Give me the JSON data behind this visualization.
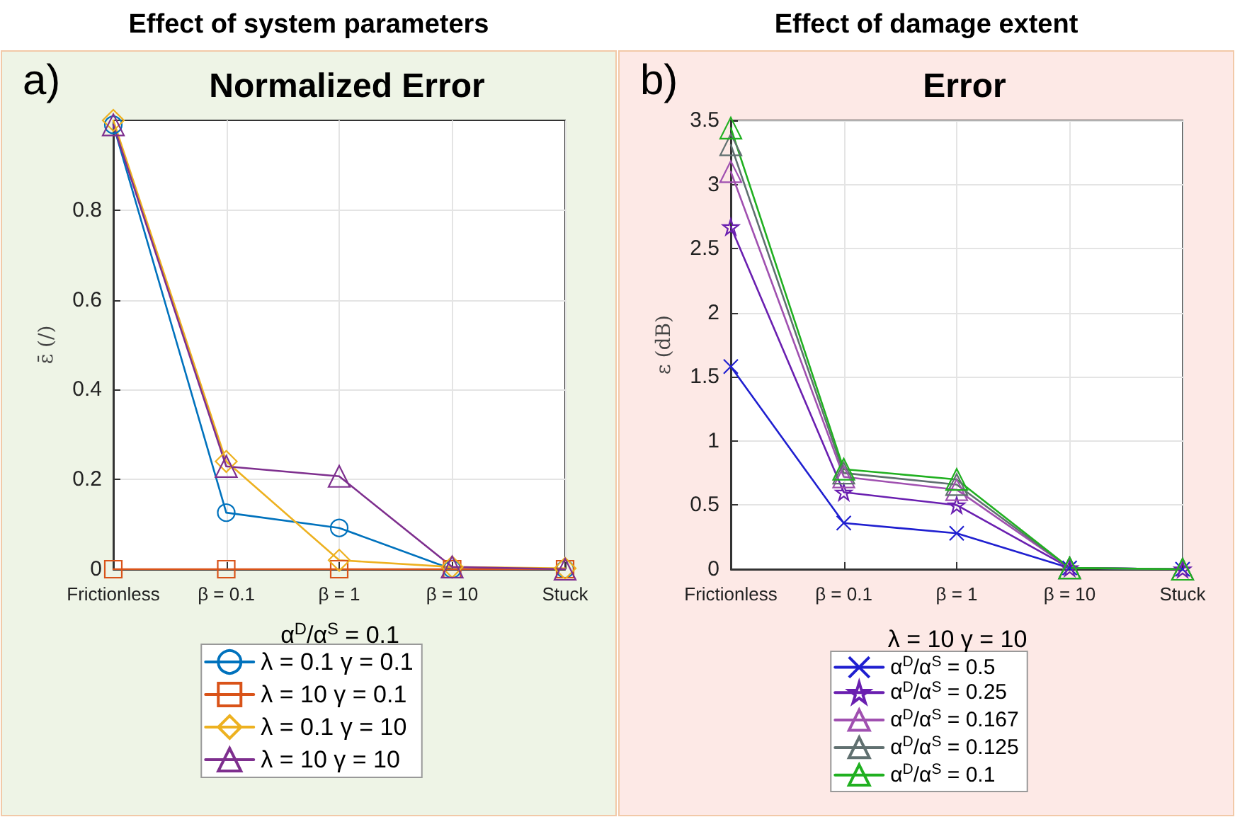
{
  "chart_data": [
    {
      "type": "line",
      "title": "Normalized Error",
      "ylabel": "ε̄ (/)",
      "legend_title": "α$^{D}$/α$^{S}$ = 0.1",
      "annotations": [
        "Effect of system parameters",
        "a)"
      ],
      "categories": [
        "Frictionless",
        "β = 0.1",
        "β = 1",
        "β = 10",
        "Stuck"
      ],
      "ylim": [
        0,
        1
      ],
      "yticks": [
        0,
        0.2,
        0.4,
        0.6,
        0.8
      ],
      "grid": true,
      "legend": "bottom",
      "line_style": "solid",
      "series": [
        {
          "name": "λ = 0.1 γ = 0.1",
          "color": "#0072bd",
          "marker": "circle",
          "values": [
            0.99,
            0.126,
            0.092,
            0,
            0
          ]
        },
        {
          "name": "λ = 10 γ = 0.1",
          "color": "#d95319",
          "marker": "square",
          "values": [
            0,
            0,
            0,
            0,
            0
          ]
        },
        {
          "name": "λ = 0.1 γ = 10",
          "color": "#edb120",
          "marker": "diamond",
          "values": [
            1,
            0.24,
            0.02,
            0.005,
            0.002
          ]
        },
        {
          "name": "λ = 10 γ = 10",
          "color": "#7e2f8e",
          "marker": "triangle",
          "values": [
            0.99,
            0.229,
            0.207,
            0.005,
            0
          ]
        }
      ]
    },
    {
      "type": "line",
      "title": "Error",
      "ylabel": "ε (dB)",
      "legend_title": "λ = 10 γ = 10",
      "annotations": [
        "Effect of damage extent",
        "b)"
      ],
      "categories": [
        "Frictionless",
        "β = 0.1",
        "β = 1",
        "β = 10",
        "Stuck"
      ],
      "ylim": [
        0,
        3.5
      ],
      "yticks": [
        0,
        0.5,
        1,
        1.5,
        2,
        2.5,
        3,
        3.5
      ],
      "grid": true,
      "legend": "bottom",
      "line_style": "solid",
      "series": [
        {
          "name": "α$^{D}$/α$^{S}$ = 0.5",
          "color": "#1f1fd0",
          "marker": "cross",
          "values": [
            1.58,
            0.36,
            0.28,
            0.01,
            0
          ]
        },
        {
          "name": "α$^{D}$/α$^{S}$ = 0.25",
          "color": "#6a1fb0",
          "marker": "star",
          "values": [
            2.67,
            0.6,
            0.5,
            0.01,
            0
          ]
        },
        {
          "name": "α$^{D}$/α$^{S}$ = 0.167",
          "color": "#a050b0",
          "marker": "triangle",
          "values": [
            3.1,
            0.72,
            0.62,
            0.01,
            0
          ]
        },
        {
          "name": "α$^{D}$/α$^{S}$ = 0.125",
          "color": "#607070",
          "marker": "triangle",
          "values": [
            3.31,
            0.75,
            0.66,
            0.01,
            0
          ]
        },
        {
          "name": "α$^{D}$/α$^{S}$ = 0.1",
          "color": "#20b020",
          "marker": "triangle",
          "values": [
            3.44,
            0.78,
            0.7,
            0.01,
            0
          ]
        }
      ]
    }
  ]
}
